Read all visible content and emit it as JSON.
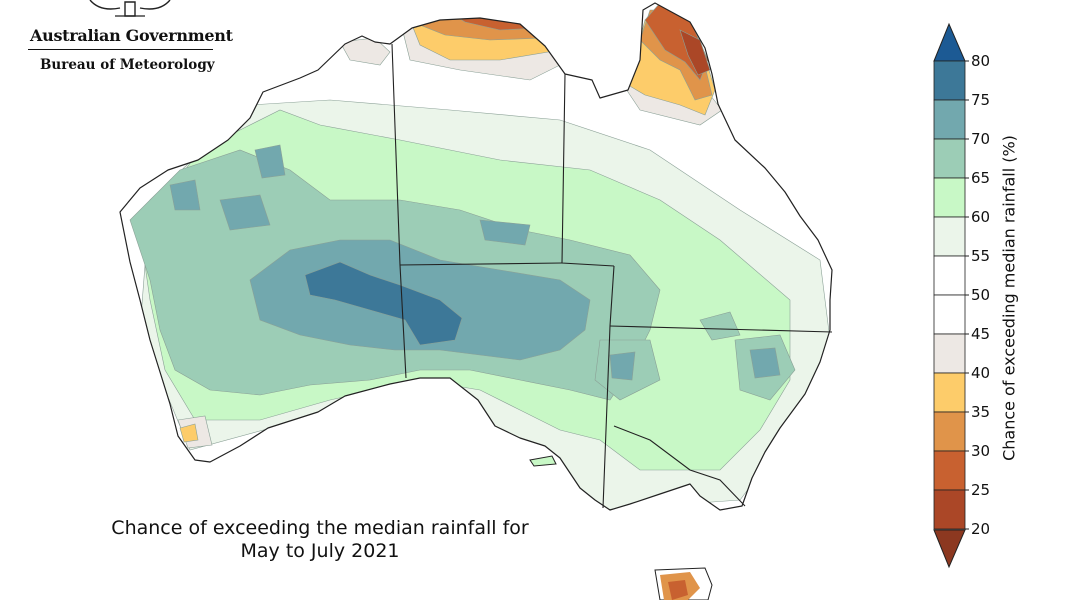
{
  "branding": {
    "government": "Australian Government",
    "bureau": "Bureau of Meteorology"
  },
  "caption": {
    "line1": "Chance of exceeding the median rainfall for",
    "line2": "May to July 2021"
  },
  "colorbar": {
    "title": "Chance of exceeding median rainfall (%)",
    "ticks": [
      "80",
      "75",
      "70",
      "65",
      "60",
      "55",
      "50",
      "45",
      "40",
      "35",
      "30",
      "25",
      "20"
    ],
    "bands": [
      {
        "range": "75-80",
        "color": "#3d7898"
      },
      {
        "range": "70-75",
        "color": "#72a8ae"
      },
      {
        "range": "65-70",
        "color": "#9ccdb6"
      },
      {
        "range": "60-65",
        "color": "#c8f8c6"
      },
      {
        "range": "55-60",
        "color": "#ebf5ea"
      },
      {
        "range": "50-55",
        "color": "#ffffff"
      },
      {
        "range": "45-50",
        "color": "#ffffff"
      },
      {
        "range": "40-45",
        "color": "#ede8e4"
      },
      {
        "range": "35-40",
        "color": "#fdcc6a"
      },
      {
        "range": "30-35",
        "color": "#e0944a"
      },
      {
        "range": "25-30",
        "color": "#c86130"
      },
      {
        "range": "20-25",
        "color": "#ab4727"
      }
    ],
    "over_color": "#1c5a94",
    "under_color": "#8c3820"
  }
}
